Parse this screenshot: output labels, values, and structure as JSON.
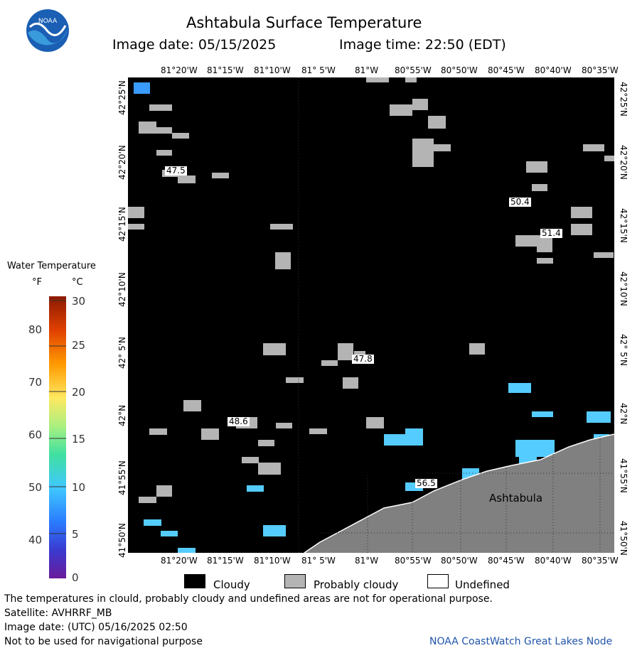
{
  "title": "Ashtabula Surface Temperature",
  "image_date_label": "Image date: 05/15/2025",
  "image_time_label": "Image time: 22:50 (EDT)",
  "lon_ticks": [
    "81°20'W",
    "81°15'W",
    "81°10'W",
    "81° 5'W",
    "81°W",
    "80°55'W",
    "80°50'W",
    "80°45'W",
    "80°40'W",
    "80°35'W"
  ],
  "lat_ticks": [
    "42°25'N",
    "42°20'N",
    "42°15'N",
    "42°10'N",
    "42° 5'N",
    "42°N",
    "41°55'N",
    "41°50'N"
  ],
  "colorbar": {
    "title": "Water Temperature",
    "unit_f": "°F",
    "unit_c": "°C",
    "f_ticks": [
      "80",
      "70",
      "60",
      "50",
      "40"
    ],
    "c_ticks": [
      "30",
      "25",
      "20",
      "15",
      "10",
      "5",
      "0"
    ]
  },
  "map": {
    "place_label": "Ashtabula",
    "temp_labels": [
      "47.5",
      "50.4",
      "51.4",
      "47.8",
      "48.6",
      "56.5"
    ],
    "colors": {
      "cloudy": "#000000",
      "probably_cloudy": "#b4b4b4",
      "land": "#808080",
      "water": "#55ccff"
    }
  },
  "legend": {
    "cloudy": "Cloudy",
    "probably_cloudy": "Probably cloudy",
    "undefined": "Undefined"
  },
  "footer": {
    "line1": "The temperatures in clould, probably cloudy and undefined areas are not for operational purpose.",
    "line2": "Satellite: AVHRRF_MB",
    "line3": "Image date: (UTC) 05/16/2025  02:50",
    "line4": "Not to be used for navigational purpose",
    "credit": "NOAA CoastWatch Great Lakes Node"
  }
}
